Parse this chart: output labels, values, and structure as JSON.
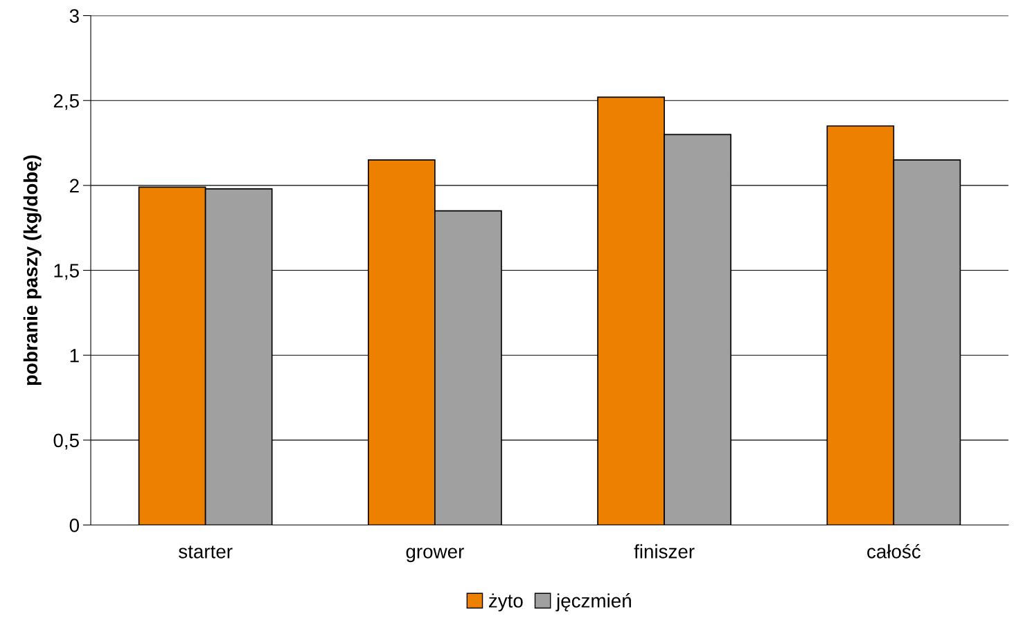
{
  "chart_data": {
    "type": "bar",
    "ylabel": "pobranie paszy (kg/dobę)",
    "categories": [
      "starter",
      "grower",
      "finiszer",
      "całość"
    ],
    "series": [
      {
        "name": "żyto",
        "color": "#ee8000",
        "values": [
          1.99,
          2.15,
          2.52,
          2.35
        ]
      },
      {
        "name": "jęczmień",
        "color": "#a0a0a0",
        "values": [
          1.98,
          1.85,
          2.3,
          2.15
        ]
      }
    ],
    "ylim": [
      0,
      3
    ],
    "yticks": [
      0,
      {
        "value": 0.5,
        "label": "0,5"
      },
      1,
      {
        "value": 1.5,
        "label": "1,5"
      },
      2,
      {
        "value": 2.5,
        "label": "2,5"
      },
      3
    ],
    "grid": "y",
    "legend": "bottom"
  }
}
